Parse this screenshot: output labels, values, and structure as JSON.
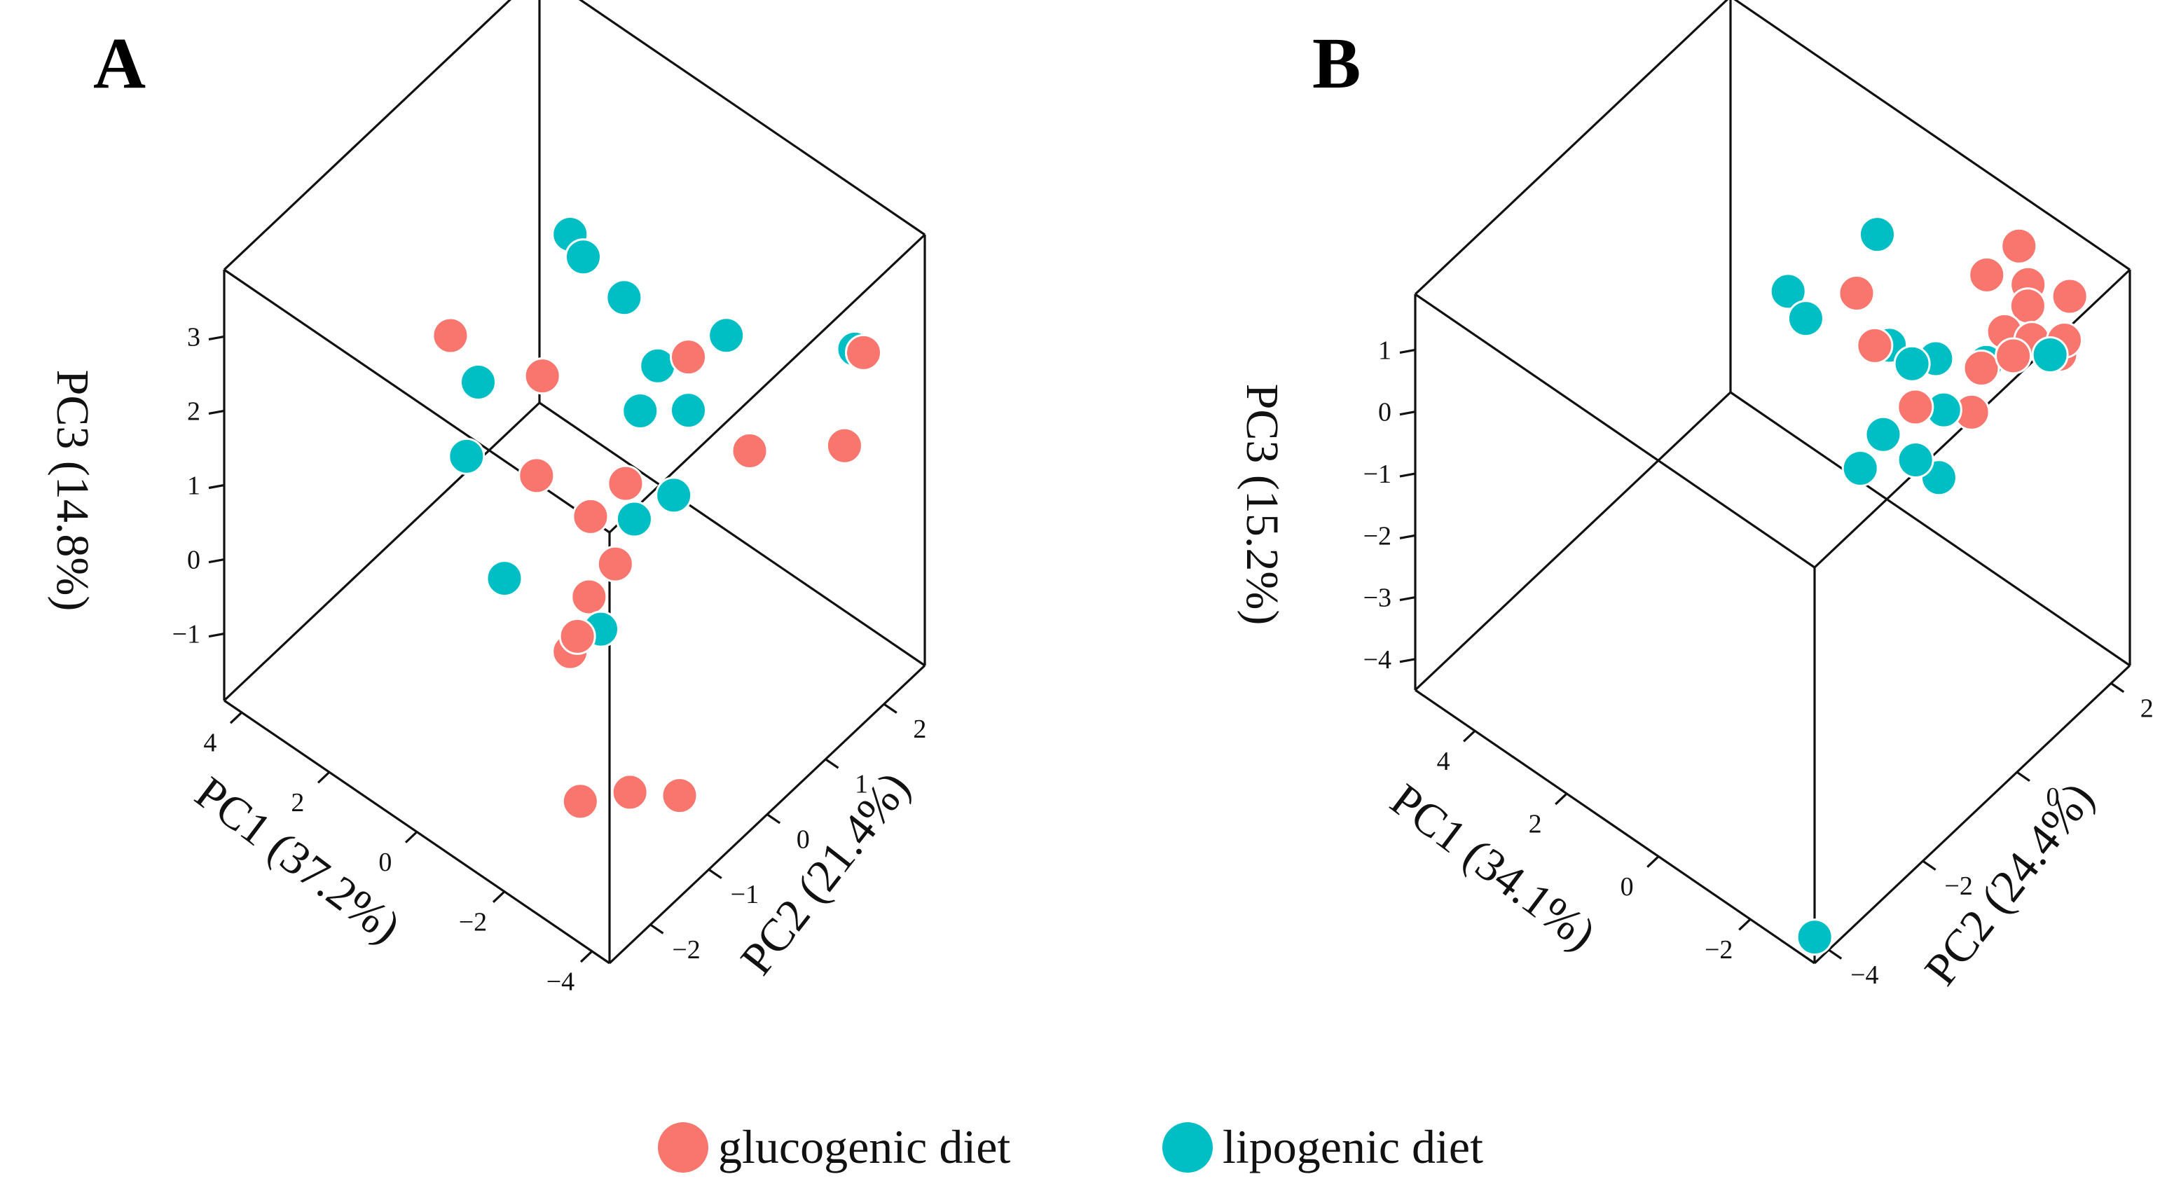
{
  "chart_data": [
    {
      "type": "scatter",
      "subtype": "3d-scatter",
      "panel_label": "A",
      "xlabel": "PC1 (37.2%)",
      "ylabel": "PC2 (21.4%)",
      "zlabel": "PC3 (14.8%)",
      "xticks": [
        "−4",
        "−2",
        "0",
        "2",
        "4"
      ],
      "yticks": [
        "−2",
        "−1",
        "0",
        "1",
        "2"
      ],
      "zticks": [
        "−1",
        "0",
        "1",
        "2",
        "3"
      ],
      "xlim": [
        -4.4,
        4.4
      ],
      "ylim": [
        -2.7,
        2.7
      ],
      "zlim": [
        -1.9,
        3.9
      ],
      "series": [
        {
          "name": "glucogenic diet",
          "color": "#F8766D",
          "points": [
            [
              -4.2,
              1.8,
              2.9
            ],
            [
              -3.9,
              1.7,
              1.6
            ],
            [
              -2.4,
              1.2,
              1.3
            ],
            [
              -3.0,
              -1.3,
              -1.2
            ],
            [
              -3.6,
              -0.9,
              -1.3
            ],
            [
              -3.2,
              -2.3,
              -0.5
            ],
            [
              -2.2,
              -1.6,
              0.8
            ],
            [
              -1.9,
              -1.5,
              0.4
            ],
            [
              -1.8,
              -1.1,
              0.8
            ],
            [
              -0.9,
              -0.4,
              1.0
            ],
            [
              -0.9,
              0.2,
              1.0
            ],
            [
              0.6,
              -0.2,
              0.8
            ],
            [
              -1.0,
              1.2,
              2.0
            ],
            [
              1.4,
              0.5,
              1.3
            ],
            [
              -2.0,
              -0.8,
              1.1
            ],
            [
              3.5,
              0.5,
              1.0
            ]
          ]
        },
        {
          "name": "lipogenic diet",
          "color": "#00BFC4",
          "points": [
            [
              -3.2,
              2.4,
              2.1
            ],
            [
              -1.2,
              1.7,
              2.0
            ],
            [
              -0.7,
              0.6,
              1.6
            ],
            [
              -0.3,
              1.2,
              1.6
            ],
            [
              1.0,
              1.6,
              1.7
            ],
            [
              2.5,
              1.8,
              1.8
            ],
            [
              -2.2,
              -1.2,
              0.6
            ],
            [
              -1.6,
              0.5,
              0.9
            ],
            [
              -1.1,
              0.2,
              0.6
            ],
            [
              -0.6,
              1.5,
              0.9
            ],
            [
              1.8,
              -0.5,
              0.8
            ],
            [
              0.0,
              -1.2,
              0.4
            ],
            [
              3.0,
              0.6,
              0.5
            ],
            [
              1.8,
              1.5,
              2.0
            ]
          ]
        }
      ]
    },
    {
      "type": "scatter",
      "subtype": "3d-scatter",
      "panel_label": "B",
      "xlabel": "PC1 (34.1%)",
      "ylabel": "PC2 (24.4%)",
      "zlabel": "PC3 (15.2%)",
      "xticks": [
        "−2",
        "0",
        "2",
        "4"
      ],
      "yticks": [
        "−4",
        "−2",
        "0",
        "2"
      ],
      "zticks": [
        "−4",
        "−3",
        "−2",
        "−1",
        "0",
        "1"
      ],
      "xlim": [
        -3.4,
        5.3
      ],
      "ylim": [
        -4.3,
        2.4
      ],
      "zlim": [
        -4.5,
        1.9
      ],
      "series": [
        {
          "name": "glucogenic diet",
          "color": "#F8766D",
          "points": [
            [
              -2.9,
              1.4,
              1.0
            ],
            [
              -2.5,
              0.8,
              1.2
            ],
            [
              -3.1,
              1.3,
              1.4
            ],
            [
              -2.6,
              1.1,
              1.3
            ],
            [
              -2.5,
              2.0,
              1.3
            ],
            [
              -1.9,
              1.2,
              1.0
            ],
            [
              -2.1,
              1.5,
              1.3
            ],
            [
              -1.9,
              1.7,
              1.4
            ],
            [
              -1.0,
              1.7,
              1.1
            ],
            [
              0.4,
              0.3,
              1.1
            ],
            [
              -1.6,
              1.0,
              0.4
            ],
            [
              -1.7,
              -0.5,
              0.9
            ],
            [
              -0.2,
              0.1,
              0.7
            ],
            [
              -1.9,
              0.5,
              0.2
            ],
            [
              -1.6,
              1.8,
              1.8
            ]
          ]
        },
        {
          "name": "lipogenic diet",
          "color": "#00BFC4",
          "points": [
            [
              -3.2,
              0.9,
              1.5
            ],
            [
              -1.5,
              1.2,
              0.3
            ],
            [
              -0.5,
              0.6,
              0.2
            ],
            [
              1.2,
              0.0,
              0.5
            ],
            [
              -1.0,
              -0.5,
              0.1
            ],
            [
              -0.5,
              -0.5,
              -0.7
            ],
            [
              -1.6,
              0.2,
              0.3
            ],
            [
              -1.5,
              -0.3,
              -0.2
            ],
            [
              -1.7,
              0.0,
              -0.6
            ],
            [
              -0.4,
              1.2,
              -0.2
            ],
            [
              0.2,
              0.8,
              0.0
            ],
            [
              2.2,
              0.6,
              0.0
            ],
            [
              -3.3,
              -4.2,
              -4.2
            ],
            [
              2.0,
              2.3,
              -0.2
            ]
          ]
        }
      ]
    }
  ],
  "legend": {
    "items": [
      {
        "label": "glucogenic diet",
        "color": "#F8766D"
      },
      {
        "label": "lipogenic diet",
        "color": "#00BFC4"
      }
    ]
  }
}
